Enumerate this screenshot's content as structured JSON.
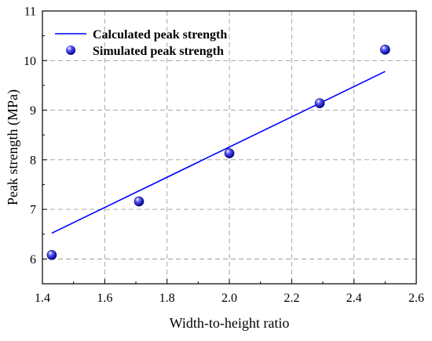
{
  "chart_data": {
    "type": "scatter",
    "title": "",
    "xlabel": "Width-to-height ratio",
    "ylabel": "Peak strength (MPa)",
    "xlim": [
      1.4,
      2.6
    ],
    "ylim": [
      5.5,
      11
    ],
    "x_ticks": [
      "1.4",
      "1.6",
      "1.8",
      "2.0",
      "2.2",
      "2.4",
      "2.6"
    ],
    "y_ticks": [
      "6",
      "7",
      "8",
      "9",
      "10",
      "11"
    ],
    "x_tick_values": [
      1.4,
      1.6,
      1.8,
      2.0,
      2.2,
      2.4,
      2.6
    ],
    "y_tick_values": [
      6,
      7,
      8,
      9,
      10,
      11
    ],
    "grid": true,
    "legend_position": "top-left",
    "series": [
      {
        "name": "Calculated peak strength",
        "kind": "line",
        "color": "#0000ff",
        "x": [
          1.43,
          2.5
        ],
        "y": [
          6.52,
          9.78
        ]
      },
      {
        "name": "Simulated peak strength",
        "kind": "scatter",
        "color": "#0000ff",
        "x": [
          1.43,
          1.71,
          2.0,
          2.29,
          2.5
        ],
        "y": [
          6.08,
          7.16,
          8.13,
          9.14,
          10.22
        ]
      }
    ]
  }
}
